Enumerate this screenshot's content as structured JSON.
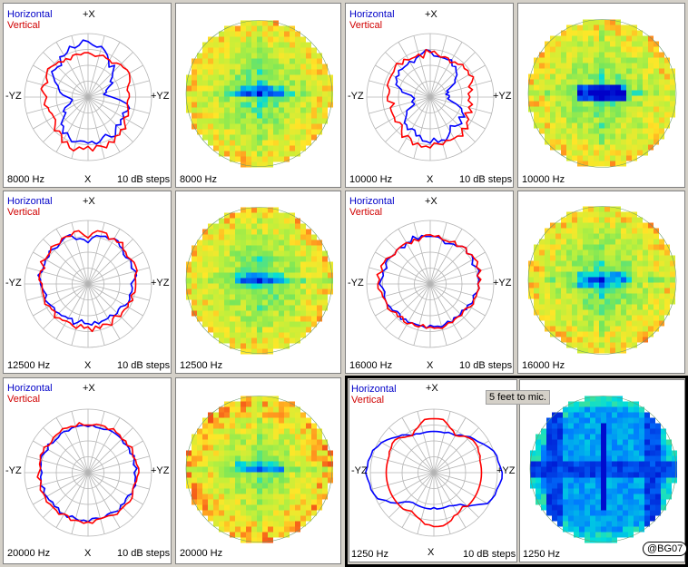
{
  "labels": {
    "horizontal": "Horizontal",
    "vertical": "Vertical",
    "top": "+X",
    "bottom": "X",
    "left": "-YZ",
    "right": "+YZ",
    "steps": "10 dB steps"
  },
  "note": "5 feet to mic.",
  "watermark": "@BG07",
  "colors": {
    "horizontal": "#0000ff",
    "vertical": "#ff0000",
    "grid": "#b4b4b4",
    "panel": "#ffffff",
    "background": "#d4d0c8"
  },
  "chart_data": [
    {
      "type": "polar",
      "frequency": "8000 Hz",
      "step": "10 dB steps",
      "shape": "horizontal wider at top with flat mid shoulders; vertical rounder with ragged bottom",
      "series": [
        {
          "name": "Horizontal",
          "values_db": [
            -5,
            -7,
            -8,
            -7,
            -9,
            -11,
            -14,
            -17,
            -14,
            -18,
            -20,
            -23,
            -22,
            -26,
            -28,
            -28,
            -30,
            -28,
            -25,
            -20,
            -15,
            -13,
            -14,
            -16,
            -14,
            -15,
            -13,
            -15,
            -13,
            -10,
            -11,
            -14,
            -13,
            -11,
            -10,
            -12,
            -11,
            -12,
            -12,
            -11,
            -10,
            -12,
            -14,
            -12,
            -16,
            -16,
            -20,
            -23,
            -22,
            -24,
            -28,
            -29,
            -30,
            -29,
            -27,
            -24,
            -22,
            -21,
            -20,
            -17,
            -15,
            -12,
            -13,
            -13,
            -14,
            -9,
            -10,
            -9,
            -6,
            -8,
            -7,
            -4
          ]
        },
        {
          "name": "Vertical",
          "values_db": [
            -12,
            -13,
            -14,
            -13,
            -12,
            -13,
            -13,
            -14,
            -12,
            -11,
            -11,
            -10,
            -10,
            -11,
            -12,
            -14,
            -15,
            -14,
            -14,
            -15,
            -15,
            -14,
            -13,
            -12,
            -14,
            -12,
            -9,
            -11,
            -9,
            -10,
            -7,
            -9,
            -6,
            -8,
            -9,
            -6,
            -9,
            -7,
            -8,
            -5,
            -6,
            -9,
            -7,
            -11,
            -12,
            -10,
            -13,
            -15,
            -15,
            -15,
            -14,
            -14,
            -12,
            -13,
            -14,
            -12,
            -10,
            -11,
            -13,
            -11,
            -10,
            -9,
            -10,
            -11,
            -11,
            -13,
            -12,
            -14,
            -12,
            -12,
            -13,
            -12
          ]
        }
      ]
    },
    {
      "type": "heatmap",
      "frequency": "8000 Hz",
      "shape": "sphere map; low spots on central horizontal band"
    },
    {
      "type": "polar",
      "frequency": "10000 Hz",
      "step": "10 dB steps",
      "shape": "horizontal collapses near horizon; vertical ragged with deep nulls at sides",
      "series": [
        {
          "name": "Horizontal",
          "values_db": [
            -11,
            -14,
            -14,
            -14,
            -14,
            -14,
            -13,
            -16,
            -15,
            -17,
            -18,
            -21,
            -22,
            -26,
            -29,
            -28,
            -30,
            -28,
            -28,
            -29,
            -27,
            -23,
            -19,
            -18,
            -15,
            -18,
            -14,
            -15,
            -16,
            -18,
            -15,
            -13,
            -11,
            -12,
            -11,
            -14,
            -11,
            -12,
            -12,
            -15,
            -14,
            -17,
            -17,
            -15,
            -17,
            -17,
            -20,
            -22,
            -23,
            -29,
            -29,
            -28,
            -29,
            -30,
            -29,
            -28,
            -22,
            -21,
            -17,
            -17,
            -15,
            -16,
            -14,
            -15,
            -15,
            -15,
            -14,
            -16,
            -14,
            -13,
            -12,
            -10
          ]
        },
        {
          "name": "Vertical",
          "values_db": [
            -12,
            -11,
            -13,
            -14,
            -13,
            -13,
            -15,
            -13,
            -13,
            -11,
            -12,
            -11,
            -12,
            -10,
            -12,
            -15,
            -13,
            -16,
            -15,
            -16,
            -13,
            -15,
            -12,
            -16,
            -12,
            -12,
            -9,
            -12,
            -8,
            -10,
            -10,
            -10,
            -11,
            -9,
            -10,
            -11,
            -8,
            -9,
            -8,
            -10,
            -8,
            -11,
            -12,
            -9,
            -12,
            -15,
            -15,
            -13,
            -14,
            -14,
            -14,
            -14,
            -17,
            -13,
            -13,
            -14,
            -14,
            -12,
            -12,
            -12,
            -12,
            -12,
            -11,
            -10,
            -13,
            -11,
            -13,
            -13,
            -13,
            -12,
            -15,
            -10
          ]
        }
      ]
    },
    {
      "type": "heatmap",
      "frequency": "10000 Hz",
      "shape": "sphere map; deep blue bars on central band"
    },
    {
      "type": "polar",
      "frequency": "12500 Hz",
      "step": "10 dB steps",
      "shape": "heart-like, dip at top; vertical slightly outside",
      "series": [
        {
          "name": "Horizontal",
          "values_db": [
            -14,
            -11,
            -9,
            -9,
            -8,
            -9,
            -7,
            -7,
            -9,
            -9,
            -11,
            -11,
            -9,
            -10,
            -11,
            -9,
            -9,
            -11,
            -13,
            -12,
            -12,
            -13,
            -12,
            -12,
            -13,
            -15,
            -15,
            -14,
            -14,
            -16,
            -15,
            -15,
            -15,
            -14,
            -16,
            -14,
            -15,
            -15,
            -17,
            -15,
            -13,
            -16,
            -15,
            -15,
            -14,
            -14,
            -13,
            -14,
            -13,
            -12,
            -11,
            -13,
            -12,
            -11,
            -10,
            -10,
            -8,
            -10,
            -10,
            -10,
            -9,
            -10,
            -8,
            -9,
            -10,
            -9,
            -8,
            -7,
            -7,
            -11,
            -11,
            -12
          ]
        },
        {
          "name": "Vertical",
          "values_db": [
            -11,
            -8,
            -6,
            -6,
            -6,
            -9,
            -7,
            -8,
            -6,
            -9,
            -9,
            -10,
            -9,
            -8,
            -8,
            -8,
            -10,
            -10,
            -10,
            -10,
            -10,
            -12,
            -10,
            -12,
            -11,
            -12,
            -12,
            -11,
            -14,
            -13,
            -10,
            -12,
            -13,
            -11,
            -13,
            -10,
            -13,
            -12,
            -14,
            -11,
            -12,
            -13,
            -13,
            -12,
            -12,
            -10,
            -13,
            -12,
            -12,
            -10,
            -11,
            -11,
            -11,
            -11,
            -11,
            -9,
            -9,
            -9,
            -11,
            -7,
            -9,
            -9,
            -9,
            -7,
            -8,
            -9,
            -7,
            -7,
            -8,
            -6,
            -6,
            -9
          ]
        }
      ]
    },
    {
      "type": "heatmap",
      "frequency": "12500 Hz",
      "shape": "sphere map; moderate central blue-green"
    },
    {
      "type": "polar",
      "frequency": "16000 Hz",
      "step": "10 dB steps",
      "shape": "blue and red nearly coincident, rounded oval",
      "series": [
        {
          "name": "Horizontal",
          "values_db": [
            -10,
            -10,
            -10,
            -11,
            -13,
            -12,
            -11,
            -11,
            -9,
            -8,
            -10,
            -8,
            -9,
            -11,
            -9,
            -8,
            -10,
            -9,
            -10,
            -9,
            -10,
            -12,
            -11,
            -11,
            -13,
            -12,
            -14,
            -13,
            -13,
            -14,
            -12,
            -14,
            -13,
            -12,
            -13,
            -13,
            -14,
            -12,
            -13,
            -13,
            -13,
            -13,
            -12,
            -13,
            -11,
            -13,
            -13,
            -11,
            -11,
            -10,
            -10,
            -10,
            -11,
            -10,
            -8,
            -9,
            -10,
            -9,
            -11,
            -9,
            -9,
            -10,
            -11,
            -10,
            -10,
            -12,
            -10,
            -11,
            -8,
            -11,
            -9,
            -10
          ]
        },
        {
          "name": "Vertical",
          "values_db": [
            -9,
            -10,
            -9,
            -11,
            -11,
            -11,
            -9,
            -11,
            -9,
            -8,
            -10,
            -8,
            -8,
            -7,
            -9,
            -7,
            -10,
            -8,
            -10,
            -9,
            -10,
            -10,
            -11,
            -10,
            -11,
            -13,
            -13,
            -12,
            -13,
            -13,
            -12,
            -13,
            -12,
            -11,
            -12,
            -12,
            -13,
            -12,
            -14,
            -12,
            -12,
            -13,
            -11,
            -11,
            -13,
            -11,
            -12,
            -10,
            -9,
            -10,
            -10,
            -9,
            -9,
            -7,
            -7,
            -8,
            -6,
            -9,
            -7,
            -8,
            -8,
            -10,
            -11,
            -10,
            -10,
            -10,
            -10,
            -12,
            -10,
            -12,
            -10,
            -9
          ]
        }
      ]
    },
    {
      "type": "heatmap",
      "frequency": "16000 Hz",
      "shape": "sphere map; small blue squares near center"
    },
    {
      "type": "polar",
      "frequency": "20000 Hz",
      "step": "10 dB steps",
      "shape": "near-circular, both curves at about -9 dB",
      "series": [
        {
          "name": "Horizontal",
          "values_db": [
            -11,
            -10,
            -11,
            -11,
            -11,
            -10,
            -10,
            -10,
            -10,
            -10,
            -11,
            -10,
            -10,
            -11,
            -9,
            -10,
            -11,
            -9,
            -11,
            -10,
            -10,
            -9,
            -10,
            -9,
            -11,
            -11,
            -10,
            -11,
            -9,
            -10,
            -11,
            -11,
            -10,
            -10,
            -11,
            -11,
            -9,
            -10,
            -9,
            -10,
            -11,
            -9,
            -10,
            -9,
            -11,
            -10,
            -11,
            -10,
            -10,
            -9,
            -11,
            -9,
            -10,
            -10,
            -11,
            -10,
            -10,
            -9,
            -9,
            -10,
            -11,
            -9,
            -11,
            -11,
            -11,
            -10,
            -10,
            -11,
            -10,
            -10,
            -10,
            -10
          ]
        },
        {
          "name": "Vertical",
          "values_db": [
            -10,
            -10,
            -9,
            -9,
            -9,
            -10,
            -8,
            -9,
            -9,
            -10,
            -9,
            -10,
            -8,
            -9,
            -10,
            -9,
            -9,
            -8,
            -8,
            -9,
            -9,
            -10,
            -10,
            -9,
            -8,
            -8,
            -9,
            -9,
            -9,
            -8,
            -9,
            -10,
            -10,
            -10,
            -10,
            -8,
            -9,
            -8,
            -9,
            -9,
            -8,
            -10,
            -10,
            -8,
            -9,
            -9,
            -9,
            -8,
            -9,
            -9,
            -8,
            -9,
            -10,
            -8,
            -9,
            -10,
            -9,
            -9,
            -8,
            -9,
            -8,
            -10,
            -10,
            -9,
            -9,
            -9,
            -8,
            -9,
            -9,
            -10,
            -8,
            -10
          ]
        }
      ]
    },
    {
      "type": "heatmap",
      "frequency": "20000 Hz",
      "shape": "sphere map; mostly green with orange-red rim"
    },
    {
      "type": "polar",
      "frequency": "1250 Hz",
      "step": "10 dB steps",
      "shape": "horizontal wide with side lobes beyond the grid; vertical narrow, pinched",
      "series": [
        {
          "name": "Horizontal",
          "values_db": [
            -14,
            -14,
            -14,
            -14,
            -13,
            -13,
            -13,
            -11,
            -10,
            -8,
            -7,
            -6,
            -4,
            -2,
            0,
            1,
            1,
            2,
            3,
            3,
            2,
            1,
            1,
            0,
            -1,
            -5,
            -8,
            -10,
            -14,
            -15,
            -16,
            -17,
            -17,
            -17,
            -17,
            -17,
            -18,
            -17,
            -17,
            -17,
            -17,
            -17,
            -17,
            -17,
            -16,
            -14,
            -10,
            -7,
            -5,
            -1,
            0,
            1,
            1,
            2,
            3,
            2,
            2,
            1,
            1,
            -1,
            -2,
            -4,
            -6,
            -8,
            -9,
            -11,
            -13,
            -13,
            -14,
            -14,
            -14,
            -14
          ]
        },
        {
          "name": "Vertical",
          "values_db": [
            -6,
            -6,
            -6,
            -8,
            -10,
            -11,
            -13,
            -12,
            -10,
            -9,
            -8,
            -8,
            -8,
            -9,
            -9,
            -10,
            -10,
            -10,
            -10,
            -10,
            -10,
            -10,
            -10,
            -10,
            -10,
            -10,
            -10,
            -10,
            -12,
            -11,
            -10,
            -10,
            -8,
            -7,
            -6,
            -6,
            -6,
            -7,
            -7,
            -9,
            -10,
            -11,
            -12,
            -11,
            -10,
            -10,
            -10,
            -10,
            -10,
            -10,
            -10,
            -10,
            -10,
            -10,
            -10,
            -10,
            -10,
            -10,
            -10,
            -9,
            -9,
            -8,
            -8,
            -9,
            -11,
            -12,
            -13,
            -11,
            -10,
            -8,
            -6,
            -6
          ]
        }
      ]
    },
    {
      "type": "heatmap",
      "frequency": "1250 Hz",
      "shape": "sphere map; strong blue lobes and central horizontal band"
    }
  ]
}
